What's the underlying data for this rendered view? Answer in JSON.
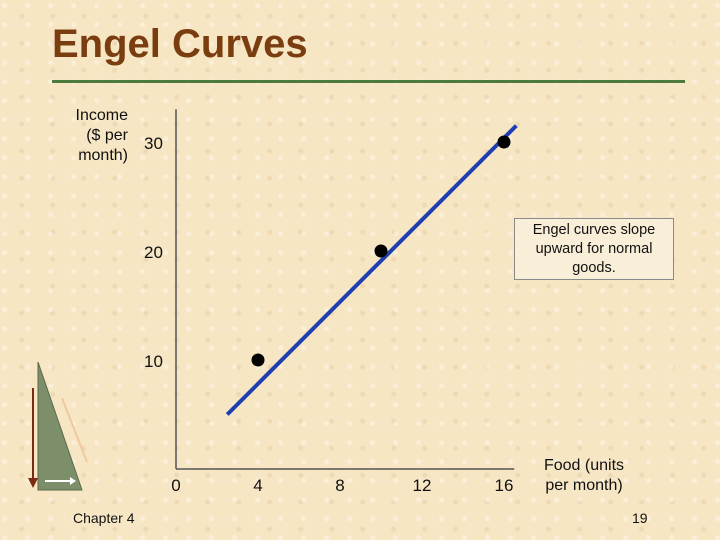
{
  "slide": {
    "title": "Engel Curves",
    "callout": "Engel curves slope upward for normal goods.",
    "footer_left": "Chapter 4",
    "footer_right": "19"
  },
  "colors": {
    "title": "#7a3d10",
    "rule": "#4a7a3c",
    "line": "#1f3fb0",
    "points": "#000000"
  },
  "chart_data": {
    "type": "line",
    "xlabel": [
      "Food (units",
      "per month)"
    ],
    "ylabel": [
      "Income",
      "($ per",
      "month)"
    ],
    "x_ticks": [
      0,
      4,
      8,
      12,
      16
    ],
    "y_ticks": [
      10,
      20,
      30
    ],
    "xlim": [
      0,
      16.5
    ],
    "ylim": [
      0,
      33
    ],
    "series": [
      {
        "line_from": [
          2.5,
          5
        ],
        "line_to": [
          16.6,
          31.5
        ]
      }
    ],
    "points": [
      {
        "x": 4,
        "y": 10
      },
      {
        "x": 10,
        "y": 20
      },
      {
        "x": 16,
        "y": 30
      }
    ],
    "legend": "none",
    "grid": false
  }
}
